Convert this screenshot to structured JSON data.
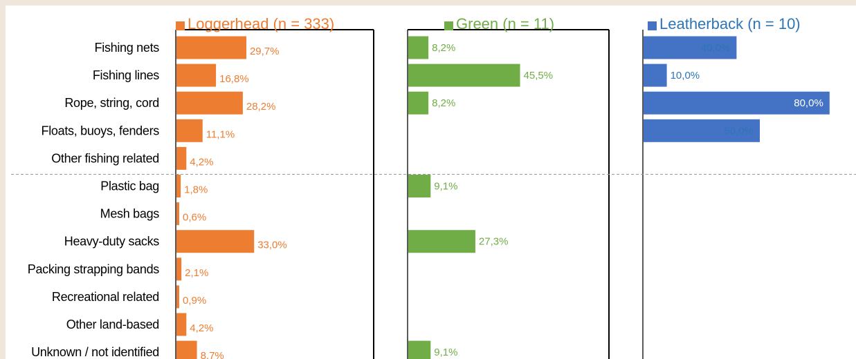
{
  "chart_data": {
    "type": "bar",
    "orientation": "horizontal",
    "categories": [
      "Fishing nets",
      "Fishing lines",
      "Rope, string, cord",
      "Floats, buoys, fenders",
      "Other fishing related",
      "Plastic bag",
      "Mesh bags",
      "Heavy-duty sacks",
      "Packing strapping bands",
      "Recreational related",
      "Other land-based",
      "Unknown / not identified"
    ],
    "separator_after_index": 4,
    "series": [
      {
        "name": "Loggerhead (n = 333)",
        "color": "#ed7d31",
        "label_color": "#ed7d31",
        "values": [
          29.7,
          16.8,
          28.2,
          11.1,
          4.2,
          1.8,
          0.6,
          33.0,
          2.1,
          0.9,
          4.2,
          8.7
        ],
        "labels": [
          "29,7%",
          "16,8%",
          "28,2%",
          "11,1%",
          "4,2%",
          "1,8%",
          "0,6%",
          "33,0%",
          "2,1%",
          "0,9%",
          "4,2%",
          "8,7%"
        ]
      },
      {
        "name": "Green (n = 11)",
        "color": "#70ad47",
        "label_color": "#70ad47",
        "values": [
          8.2,
          45.5,
          8.2,
          null,
          null,
          9.1,
          null,
          27.3,
          null,
          null,
          null,
          9.1
        ],
        "labels": [
          "8,2%",
          "45,5%",
          "8,2%",
          "",
          "",
          "9,1%",
          "",
          "27,3%",
          "",
          "",
          "",
          "9,1%"
        ]
      },
      {
        "name": "Leatherback (n = 10)",
        "color": "#4472c4",
        "label_color": "#2e75b6",
        "values": [
          40.0,
          10.0,
          80.0,
          50.0,
          null,
          null,
          null,
          null,
          null,
          null,
          null,
          null
        ],
        "labels": [
          "40,0%",
          "10,0%",
          "80,0%",
          "50,0%",
          "",
          "",
          "",
          "",
          "",
          "",
          "",
          ""
        ]
      }
    ]
  }
}
